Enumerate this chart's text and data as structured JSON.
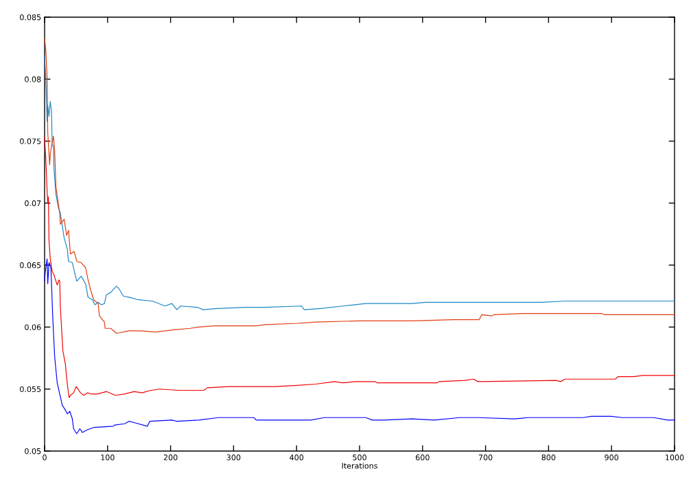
{
  "chart_data": {
    "type": "line",
    "xlabel": "Iterations",
    "xlim": [
      0,
      1000
    ],
    "xticks": [
      0,
      100,
      200,
      300,
      400,
      500,
      600,
      700,
      800,
      900,
      1000
    ],
    "ylim": [
      0.05,
      0.085
    ],
    "yticks": [
      0.05,
      0.055,
      0.06,
      0.065,
      0.07,
      0.075,
      0.08,
      0.085
    ],
    "grid": false,
    "line_style": "solid",
    "series": [
      {
        "color": "#1a86c8",
        "x": [
          0,
          2,
          4,
          5,
          7,
          9,
          11,
          12,
          14,
          15,
          18,
          22,
          25,
          31,
          36,
          38,
          44,
          51,
          58,
          65,
          69,
          76,
          80,
          85,
          90,
          95,
          98,
          105,
          114,
          118,
          125,
          135,
          149,
          171,
          191,
          202,
          210,
          216,
          242,
          252,
          274,
          321,
          350,
          408,
          412,
          438,
          474,
          510,
          583,
          605,
          790,
          826,
          935,
          1000
        ],
        "values": [
          0.0819,
          0.0799,
          0.0766,
          0.0779,
          0.077,
          0.0782,
          0.0774,
          0.0747,
          0.0746,
          0.0727,
          0.0707,
          0.0696,
          0.0692,
          0.0672,
          0.0663,
          0.0653,
          0.0652,
          0.0637,
          0.0641,
          0.0635,
          0.0624,
          0.0622,
          0.0618,
          0.062,
          0.0618,
          0.0619,
          0.0626,
          0.0628,
          0.0633,
          0.0631,
          0.0625,
          0.0624,
          0.0622,
          0.0621,
          0.0617,
          0.0619,
          0.0614,
          0.0617,
          0.0616,
          0.0614,
          0.0615,
          0.0616,
          0.0616,
          0.0617,
          0.0614,
          0.0615,
          0.0617,
          0.0619,
          0.0619,
          0.062,
          0.062,
          0.0621,
          0.0621,
          0.0621
        ]
      },
      {
        "color": "#e03c10",
        "x": [
          0,
          2,
          4,
          5,
          8,
          9,
          14,
          16,
          18,
          24,
          25,
          31,
          35,
          38,
          41,
          47,
          51,
          58,
          65,
          69,
          73,
          78,
          85,
          87,
          95,
          96,
          105,
          114,
          134,
          152,
          176,
          209,
          231,
          245,
          270,
          336,
          350,
          401,
          430,
          499,
          583,
          648,
          690,
          694,
          710,
          713,
          760,
          885,
          888,
          1000
        ],
        "values": [
          0.0833,
          0.0823,
          0.0801,
          0.0757,
          0.0731,
          0.074,
          0.0754,
          0.0742,
          0.0713,
          0.0692,
          0.0683,
          0.0687,
          0.0674,
          0.0678,
          0.0659,
          0.0661,
          0.0653,
          0.0652,
          0.0648,
          0.0638,
          0.063,
          0.0622,
          0.0619,
          0.0609,
          0.0604,
          0.0599,
          0.0599,
          0.0595,
          0.0597,
          0.0597,
          0.0596,
          0.0598,
          0.0599,
          0.06,
          0.0601,
          0.0601,
          0.0602,
          0.0603,
          0.0604,
          0.0605,
          0.0605,
          0.0606,
          0.0606,
          0.061,
          0.0609,
          0.061,
          0.0611,
          0.0611,
          0.061,
          0.061
        ]
      },
      {
        "color": "#f00000",
        "x": [
          0,
          2,
          4,
          5,
          6,
          7,
          9,
          12,
          15,
          18,
          20,
          23,
          24,
          25,
          29,
          33,
          36,
          39,
          41,
          46,
          50,
          53,
          57,
          62,
          68,
          74,
          84,
          98,
          112,
          127,
          142,
          155,
          169,
          183,
          212,
          253,
          258,
          292,
          329,
          365,
          401,
          430,
          460,
          474,
          492,
          525,
          528,
          583,
          623,
          626,
          667,
          681,
          688,
          812,
          819,
          826,
          906,
          910,
          935,
          950,
          1000
        ],
        "values": [
          0.0753,
          0.0735,
          0.0709,
          0.07,
          0.0705,
          0.067,
          0.0655,
          0.0645,
          0.0642,
          0.0637,
          0.0634,
          0.0638,
          0.0637,
          0.0616,
          0.0581,
          0.057,
          0.0554,
          0.0543,
          0.0545,
          0.0547,
          0.0552,
          0.055,
          0.0547,
          0.0545,
          0.0547,
          0.0546,
          0.0546,
          0.0548,
          0.0545,
          0.0546,
          0.0548,
          0.0547,
          0.0549,
          0.055,
          0.0549,
          0.0549,
          0.0551,
          0.0552,
          0.0552,
          0.0552,
          0.0553,
          0.0554,
          0.0556,
          0.0555,
          0.0556,
          0.0556,
          0.0555,
          0.0555,
          0.0555,
          0.0556,
          0.0557,
          0.0558,
          0.0556,
          0.0557,
          0.0556,
          0.0558,
          0.0558,
          0.056,
          0.056,
          0.0561,
          0.0561
        ]
      },
      {
        "color": "#0000ff",
        "x": [
          0,
          1,
          2,
          4,
          5,
          7,
          10,
          13,
          16,
          20,
          24,
          25,
          28,
          33,
          36,
          40,
          44,
          46,
          51,
          56,
          60,
          67,
          78,
          109,
          111,
          127,
          134,
          142,
          163,
          167,
          202,
          210,
          245,
          276,
          332,
          336,
          372,
          423,
          444,
          510,
          520,
          539,
          583,
          619,
          659,
          688,
          746,
          768,
          855,
          868,
          899,
          917,
          967,
          989,
          1000
        ],
        "values": [
          0.0637,
          0.0644,
          0.0648,
          0.0655,
          0.0635,
          0.0652,
          0.0648,
          0.0607,
          0.0576,
          0.0555,
          0.0546,
          0.0544,
          0.0537,
          0.0533,
          0.053,
          0.0532,
          0.0526,
          0.0518,
          0.0514,
          0.0518,
          0.0515,
          0.0517,
          0.0519,
          0.052,
          0.0521,
          0.0522,
          0.0524,
          0.0523,
          0.052,
          0.0524,
          0.0525,
          0.0524,
          0.0525,
          0.0527,
          0.0527,
          0.0525,
          0.0525,
          0.0525,
          0.0527,
          0.0527,
          0.0525,
          0.0525,
          0.0526,
          0.0525,
          0.0527,
          0.0527,
          0.0526,
          0.0527,
          0.0527,
          0.0528,
          0.0528,
          0.0527,
          0.0527,
          0.0525,
          0.0525
        ]
      }
    ]
  }
}
